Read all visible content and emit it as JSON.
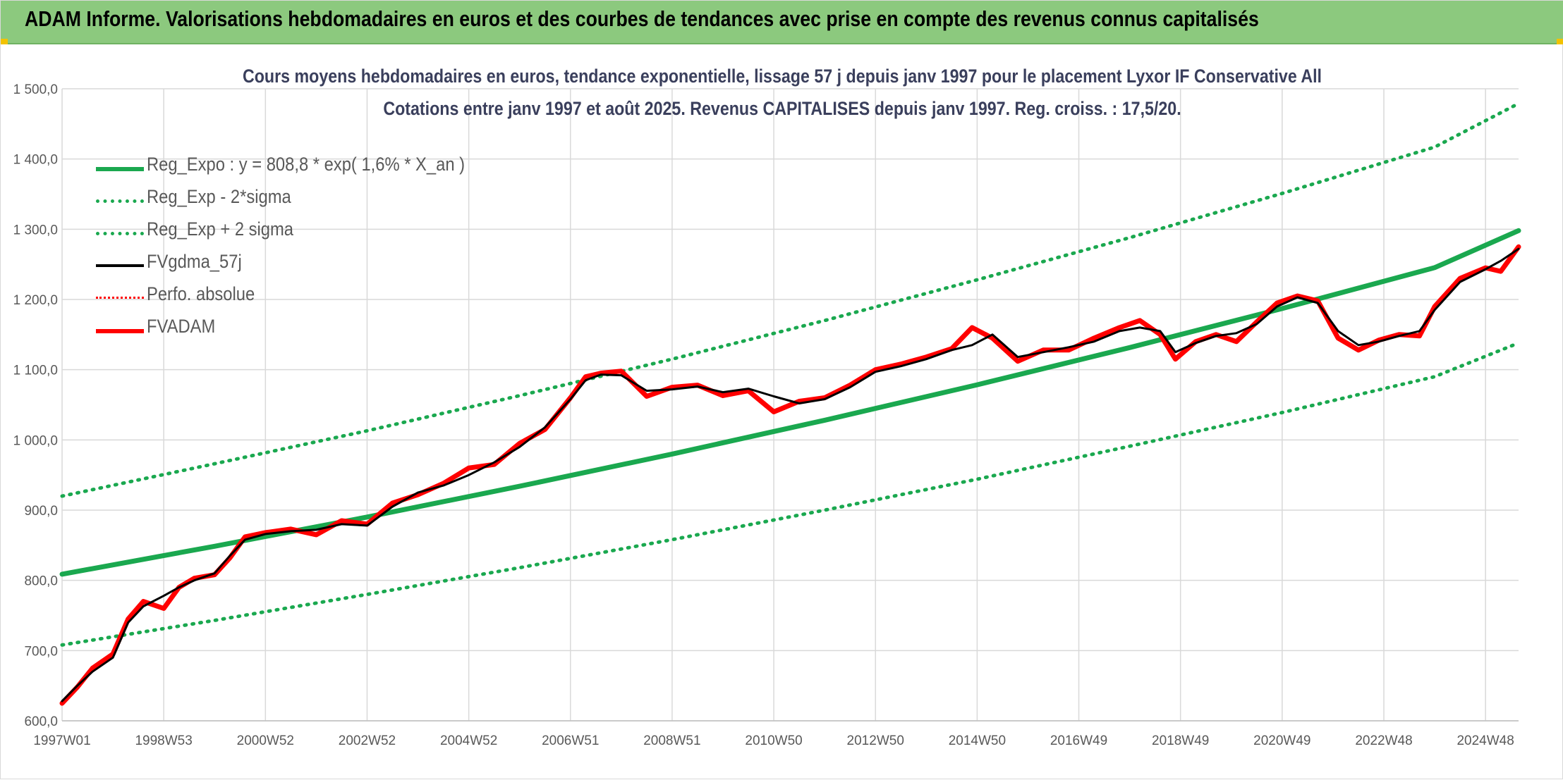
{
  "window": {
    "banner_title": "ADAM Informe. Valorisations hebdomadaires en euros et des courbes de tendances avec prise en compte des revenus connus capitalisés"
  },
  "colors": {
    "banner_bg": "#8cc97e",
    "trend_green": "#1aa84f",
    "price_red": "#ff0000",
    "smooth_black": "#000000",
    "grid": "#d9d9d9",
    "title_text": "#3a3f5c"
  },
  "chart_data": {
    "type": "line",
    "title": "Cours moyens hebdomadaires en euros, tendance exponentielle, lissage 57 j depuis janv 1997 pour le placement Lyxor IF Conservative All",
    "subtitle": "Cotations entre janv 1997 et août 2025. Revenus CAPITALISES depuis janv 1997. Reg. croiss. : 17,5/20.",
    "xlabel": "",
    "ylabel": "",
    "ylim": [
      600,
      1500
    ],
    "xlim": [
      1997.0,
      2025.65
    ],
    "grid": true,
    "legend_position": "top-left",
    "y_ticks": [
      "600,0",
      "700,0",
      "800,0",
      "900,0",
      "1 000,0",
      "1 100,0",
      "1 200,0",
      "1 300,0",
      "1 400,0",
      "1 500,0"
    ],
    "y_tick_values": [
      600,
      700,
      800,
      900,
      1000,
      1100,
      1200,
      1300,
      1400,
      1500
    ],
    "x_ticks": [
      "1997W01",
      "1998W53",
      "2000W52",
      "2002W52",
      "2004W52",
      "2006W51",
      "2008W51",
      "2010W50",
      "2012W50",
      "2014W50",
      "2016W49",
      "2018W49",
      "2020W49",
      "2022W48",
      "2024W48"
    ],
    "x_tick_values": [
      1997.0,
      1999.0,
      2001.0,
      2003.0,
      2005.0,
      2007.0,
      2009.0,
      2011.0,
      2013.0,
      2015.0,
      2017.0,
      2019.0,
      2021.0,
      2023.0,
      2025.0
    ],
    "series": [
      {
        "name": "Reg_Expo : y = 808,8 * exp( 1,6% *  X_an )",
        "style": "solid-thick",
        "color": "#1aa84f",
        "x": [
          1997.0,
          2000.0,
          2003.0,
          2006.0,
          2009.0,
          2012.0,
          2015.0,
          2018.0,
          2021.0,
          2024.0,
          2025.65
        ],
        "values": [
          808.8,
          848.5,
          890.2,
          934.0,
          979.9,
          1028.0,
          1078.5,
          1131.5,
          1187.1,
          1245.4,
          1298.0
        ]
      },
      {
        "name": "Reg_Exp - 2*sigma",
        "style": "dotted",
        "color": "#1aa84f",
        "x": [
          1997.0,
          2000.0,
          2003.0,
          2006.0,
          2009.0,
          2012.0,
          2015.0,
          2018.0,
          2021.0,
          2024.0,
          2025.65
        ],
        "values": [
          708.0,
          743.0,
          780.0,
          818.0,
          858.0,
          900.0,
          944.0,
          991.0,
          1039.0,
          1090.0,
          1138.0
        ]
      },
      {
        "name": "Reg_Exp + 2 sigma",
        "style": "dotted",
        "color": "#1aa84f",
        "x": [
          1997.0,
          2000.0,
          2003.0,
          2006.0,
          2009.0,
          2012.0,
          2015.0,
          2018.0,
          2021.0,
          2024.0,
          2025.65
        ],
        "values": [
          920.0,
          966.0,
          1013.0,
          1063.0,
          1115.0,
          1170.0,
          1228.0,
          1288.0,
          1351.0,
          1417.0,
          1479.0
        ]
      },
      {
        "name": "FVgdma_57j",
        "style": "solid",
        "color": "#000000",
        "x": [
          1997.0,
          1997.3,
          1997.6,
          1998.0,
          1998.3,
          1998.6,
          1999.0,
          1999.3,
          1999.6,
          2000.0,
          2000.3,
          2000.6,
          2001.0,
          2001.5,
          2002.0,
          2002.5,
          2003.0,
          2003.5,
          2004.0,
          2004.5,
          2005.0,
          2005.5,
          2006.0,
          2006.5,
          2007.0,
          2007.3,
          2007.6,
          2008.0,
          2008.5,
          2009.0,
          2009.5,
          2010.0,
          2010.5,
          2011.0,
          2011.5,
          2012.0,
          2012.5,
          2013.0,
          2013.5,
          2014.0,
          2014.5,
          2014.9,
          2015.3,
          2015.8,
          2016.3,
          2016.8,
          2017.3,
          2017.8,
          2018.2,
          2018.6,
          2018.9,
          2019.3,
          2019.7,
          2020.1,
          2020.5,
          2020.9,
          2021.3,
          2021.7,
          2022.1,
          2022.5,
          2022.9,
          2023.3,
          2023.7,
          2024.0,
          2024.5,
          2025.0,
          2025.3,
          2025.65
        ],
        "values": [
          628,
          650,
          670,
          690,
          740,
          763,
          778,
          790,
          800,
          810,
          835,
          858,
          866,
          870,
          872,
          880,
          878,
          905,
          925,
          935,
          950,
          968,
          990,
          1018,
          1058,
          1085,
          1093,
          1092,
          1070,
          1072,
          1076,
          1068,
          1073,
          1062,
          1052,
          1058,
          1075,
          1097,
          1105,
          1115,
          1128,
          1135,
          1150,
          1118,
          1125,
          1132,
          1140,
          1155,
          1160,
          1155,
          1125,
          1138,
          1148,
          1152,
          1165,
          1190,
          1203,
          1195,
          1155,
          1135,
          1140,
          1148,
          1155,
          1185,
          1225,
          1243,
          1255,
          1272
        ]
      },
      {
        "name": "Perfo. absolue",
        "style": "dotted",
        "color": "#ff0000",
        "x": [
          1997.0,
          2025.65
        ],
        "values": [
          628,
          1272
        ]
      },
      {
        "name": "FVADAM",
        "style": "solid-thick",
        "color": "#ff0000",
        "x": [
          1997.0,
          1997.3,
          1997.6,
          1998.0,
          1998.3,
          1998.6,
          1999.0,
          1999.3,
          1999.6,
          2000.0,
          2000.3,
          2000.6,
          2001.0,
          2001.5,
          2002.0,
          2002.5,
          2003.0,
          2003.5,
          2004.0,
          2004.5,
          2005.0,
          2005.5,
          2006.0,
          2006.5,
          2007.0,
          2007.3,
          2007.6,
          2008.0,
          2008.5,
          2009.0,
          2009.5,
          2010.0,
          2010.5,
          2011.0,
          2011.5,
          2012.0,
          2012.5,
          2013.0,
          2013.5,
          2014.0,
          2014.5,
          2014.9,
          2015.3,
          2015.8,
          2016.3,
          2016.8,
          2017.3,
          2017.8,
          2018.2,
          2018.6,
          2018.9,
          2019.3,
          2019.7,
          2020.1,
          2020.5,
          2020.9,
          2021.3,
          2021.7,
          2022.1,
          2022.5,
          2022.9,
          2023.3,
          2023.7,
          2024.0,
          2024.5,
          2025.0,
          2025.3,
          2025.65
        ],
        "values": [
          625,
          648,
          675,
          695,
          745,
          770,
          760,
          790,
          803,
          808,
          832,
          862,
          868,
          873,
          865,
          885,
          880,
          910,
          922,
          938,
          960,
          965,
          995,
          1015,
          1060,
          1090,
          1095,
          1098,
          1062,
          1075,
          1078,
          1063,
          1070,
          1040,
          1055,
          1060,
          1078,
          1100,
          1108,
          1118,
          1130,
          1160,
          1145,
          1112,
          1128,
          1128,
          1145,
          1160,
          1170,
          1150,
          1115,
          1140,
          1150,
          1140,
          1168,
          1195,
          1205,
          1198,
          1145,
          1128,
          1142,
          1150,
          1148,
          1190,
          1230,
          1245,
          1240,
          1275
        ]
      }
    ]
  }
}
